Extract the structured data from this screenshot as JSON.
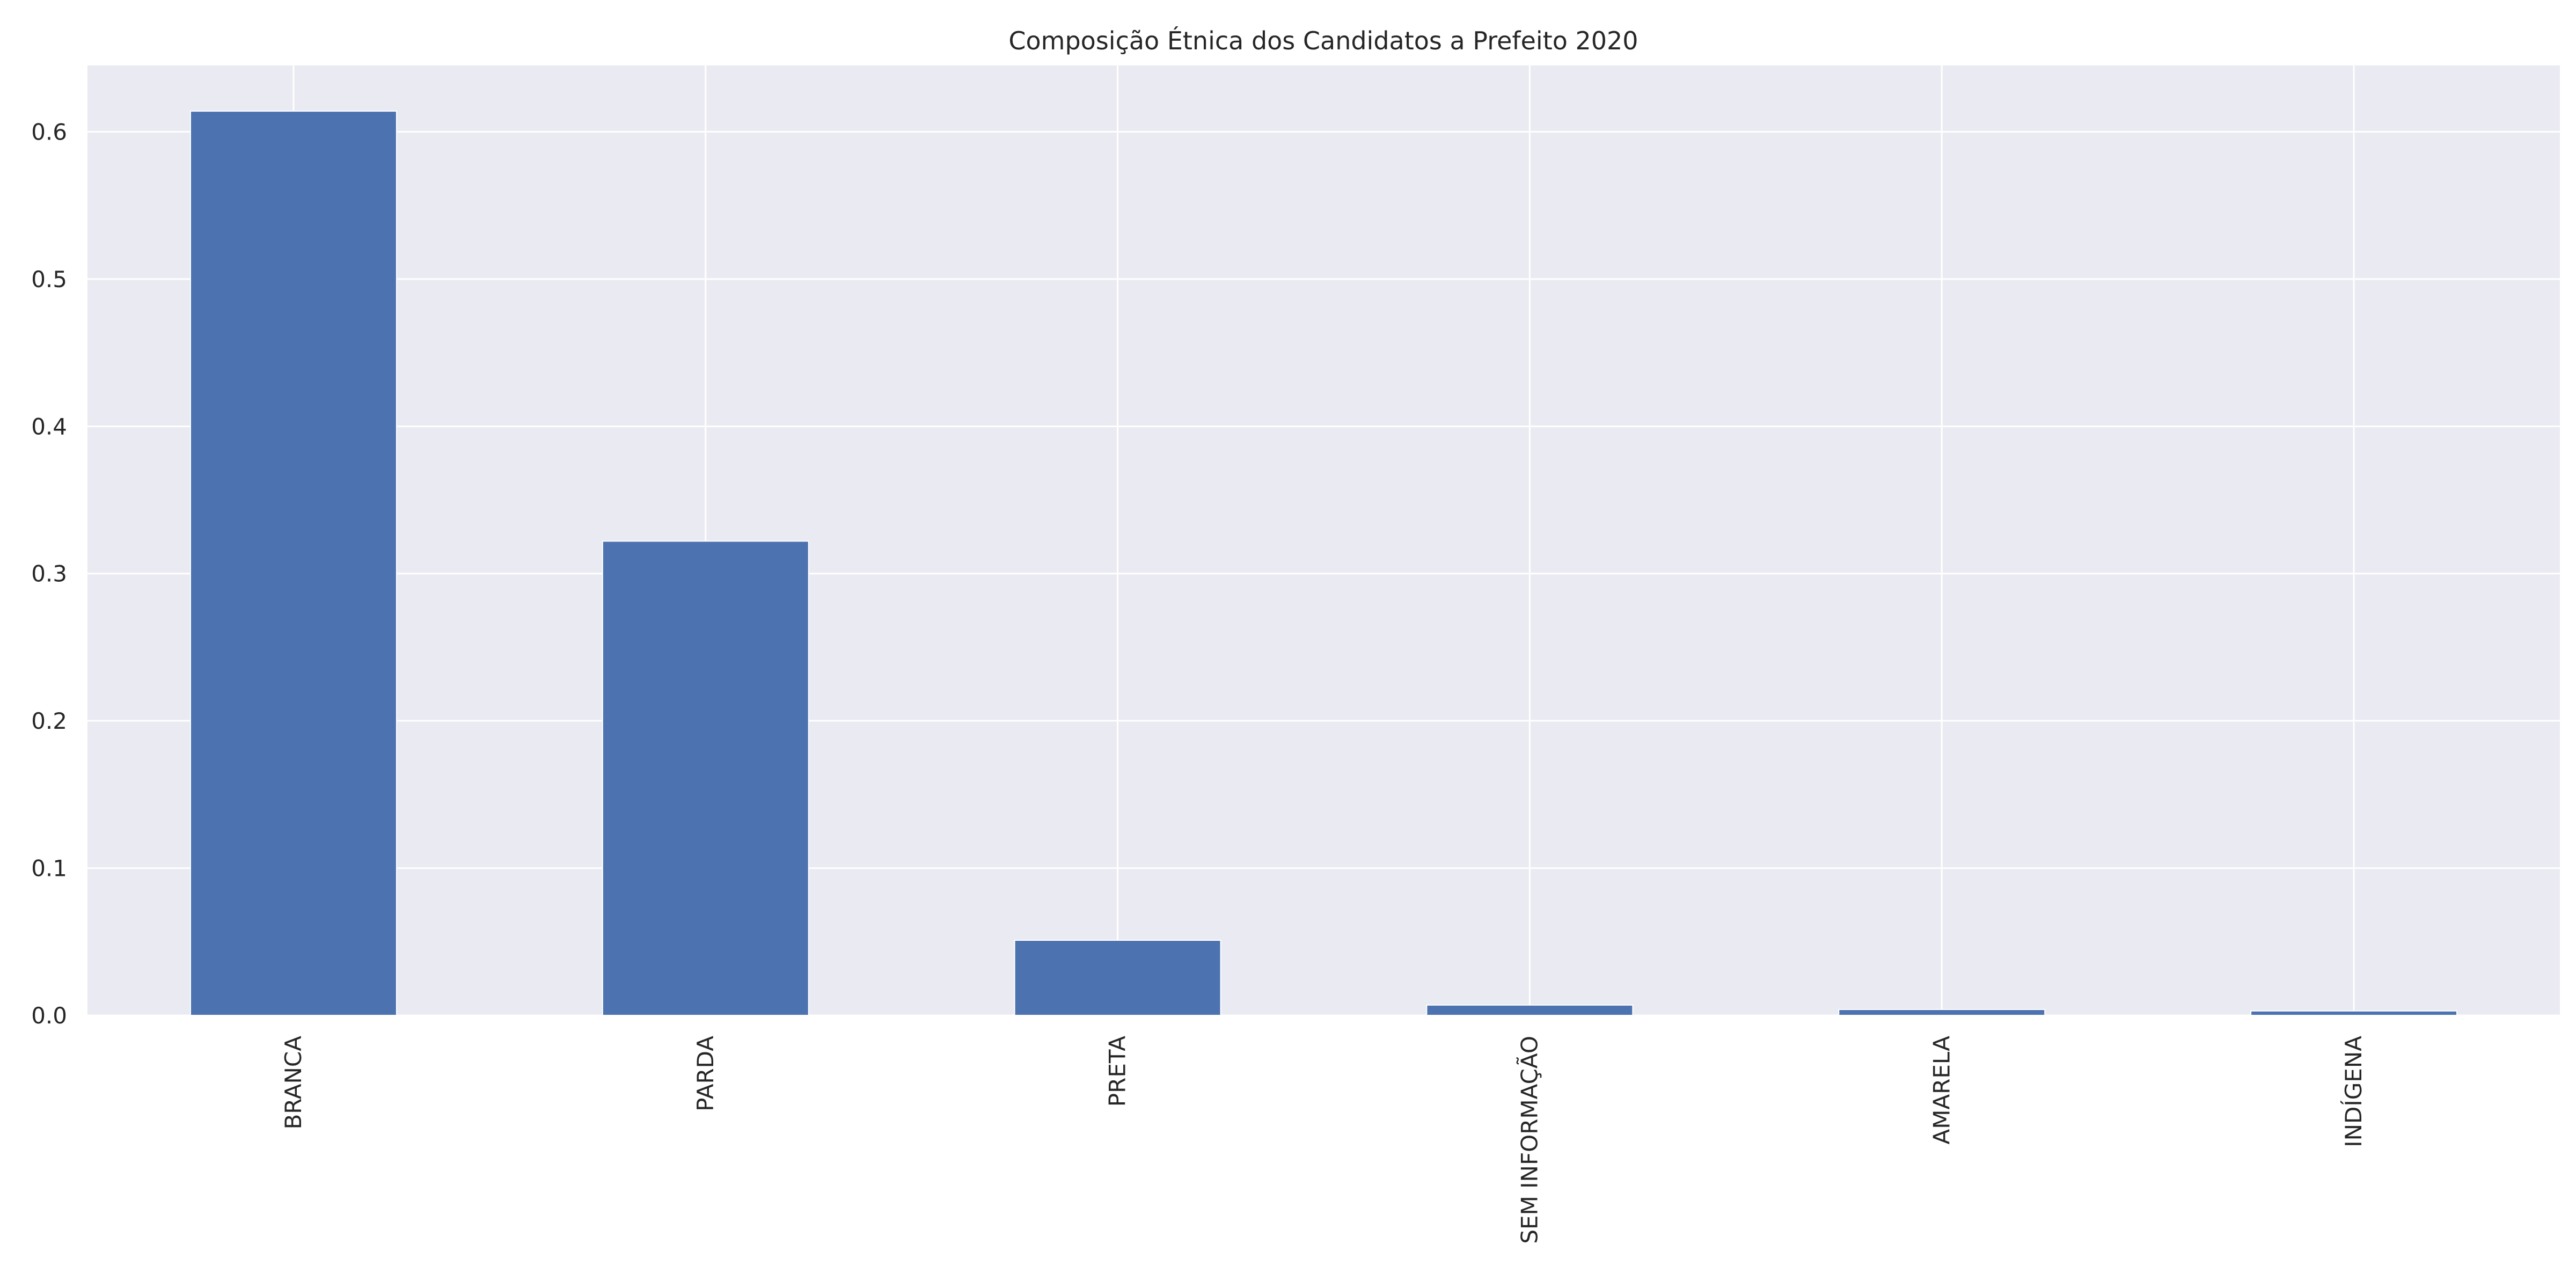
{
  "chart_data": {
    "type": "bar",
    "title": "Composição Étnica dos Candidatos a Prefeito 2020",
    "xlabel": "",
    "ylabel": "",
    "categories": [
      "BRANCA",
      "PARDA",
      "PRETA",
      "SEM INFORMAÇÃO",
      "AMARELA",
      "INDÍGENA"
    ],
    "values": [
      0.614,
      0.322,
      0.051,
      0.007,
      0.004,
      0.003
    ],
    "ylim": [
      0,
      0.645
    ],
    "yticks": [
      0.0,
      0.1,
      0.2,
      0.3,
      0.4,
      0.5,
      0.6
    ],
    "ytick_labels": [
      "0.0",
      "0.1",
      "0.2",
      "0.3",
      "0.4",
      "0.5",
      "0.6"
    ],
    "grid": true,
    "legend": "none",
    "colors": {
      "bar": "#4c72b0",
      "plot_background": "#eaeaf2",
      "grid": "#ffffff"
    }
  }
}
